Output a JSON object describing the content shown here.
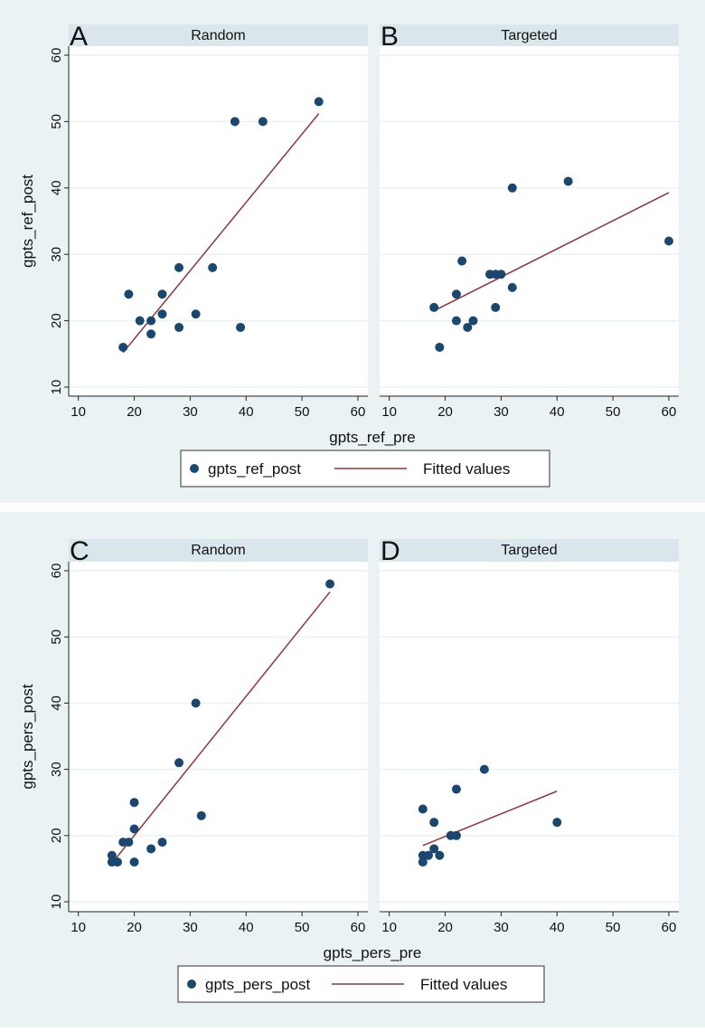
{
  "colors": {
    "background": "#eaf2f3",
    "strip": "#d9e6eb",
    "point": "#1a476f",
    "fit": "#90353b",
    "grid": "#eaf2f3"
  },
  "chart_data": [
    {
      "type": "scatter",
      "letter": "A",
      "title": "Random",
      "xlabel": "gpts_ref_pre",
      "ylabel": "gpts_ref_post",
      "xlim": [
        10,
        60
      ],
      "ylim": [
        10,
        60
      ],
      "xticks": [
        "10",
        "20",
        "30",
        "40",
        "50",
        "60"
      ],
      "yticks": [
        "10",
        "20",
        "30",
        "40",
        "50",
        "60"
      ],
      "grid": true,
      "points": [
        [
          18,
          16
        ],
        [
          19,
          24
        ],
        [
          21,
          20
        ],
        [
          23,
          20
        ],
        [
          23,
          18
        ],
        [
          25,
          24
        ],
        [
          25,
          21
        ],
        [
          28,
          28
        ],
        [
          28,
          19
        ],
        [
          31,
          21
        ],
        [
          34,
          28
        ],
        [
          38,
          50
        ],
        [
          39,
          19
        ],
        [
          43,
          50
        ],
        [
          53,
          53
        ]
      ],
      "fit": [
        [
          18,
          15.2
        ],
        [
          53,
          51.2
        ]
      ]
    },
    {
      "type": "scatter",
      "letter": "B",
      "title": "Targeted",
      "xlim": [
        10,
        60
      ],
      "ylim": [
        10,
        60
      ],
      "xticks": [
        "10",
        "20",
        "30",
        "40",
        "50",
        "60"
      ],
      "grid": true,
      "points": [
        [
          18,
          22
        ],
        [
          19,
          16
        ],
        [
          22,
          24
        ],
        [
          22,
          20
        ],
        [
          23,
          29
        ],
        [
          24,
          19
        ],
        [
          25,
          20
        ],
        [
          28,
          27
        ],
        [
          29,
          27
        ],
        [
          30,
          27
        ],
        [
          29,
          22
        ],
        [
          32,
          25
        ],
        [
          32,
          40
        ],
        [
          42,
          41
        ],
        [
          60,
          32
        ]
      ],
      "fit": [
        [
          18,
          21.5
        ],
        [
          60,
          39.3
        ]
      ]
    },
    {
      "type": "scatter",
      "letter": "C",
      "title": "Random",
      "xlabel": "gpts_pers_pre",
      "ylabel": "gpts_pers_post",
      "xlim": [
        10,
        60
      ],
      "ylim": [
        10,
        60
      ],
      "xticks": [
        "10",
        "20",
        "30",
        "40",
        "50",
        "60"
      ],
      "yticks": [
        "10",
        "20",
        "30",
        "40",
        "50",
        "60"
      ],
      "grid": true,
      "points": [
        [
          16,
          17
        ],
        [
          16,
          16
        ],
        [
          17,
          16
        ],
        [
          18,
          19
        ],
        [
          19,
          19
        ],
        [
          20,
          25
        ],
        [
          20,
          21
        ],
        [
          20,
          16
        ],
        [
          23,
          18
        ],
        [
          25,
          19
        ],
        [
          28,
          31
        ],
        [
          31,
          40
        ],
        [
          32,
          23
        ],
        [
          55,
          58
        ]
      ],
      "fit": [
        [
          16,
          15.8
        ],
        [
          55,
          56.8
        ]
      ]
    },
    {
      "type": "scatter",
      "letter": "D",
      "title": "Targeted",
      "xlim": [
        10,
        60
      ],
      "ylim": [
        10,
        60
      ],
      "xticks": [
        "10",
        "20",
        "30",
        "40",
        "50",
        "60"
      ],
      "grid": true,
      "points": [
        [
          16,
          24
        ],
        [
          16,
          17
        ],
        [
          16,
          16
        ],
        [
          17,
          17
        ],
        [
          18,
          22
        ],
        [
          18,
          18
        ],
        [
          19,
          17
        ],
        [
          21,
          20
        ],
        [
          22,
          20
        ],
        [
          22,
          27
        ],
        [
          27,
          30
        ],
        [
          40,
          22
        ]
      ],
      "fit": [
        [
          16,
          18.5
        ],
        [
          40,
          26.7
        ]
      ]
    }
  ],
  "legends": [
    {
      "points_label": "gpts_ref_post",
      "fit_label": "Fitted values"
    },
    {
      "points_label": "gpts_pers_post",
      "fit_label": "Fitted values"
    }
  ]
}
